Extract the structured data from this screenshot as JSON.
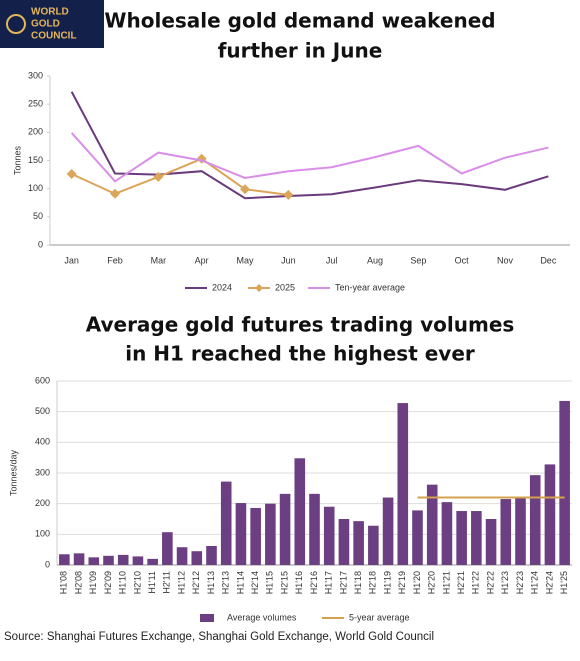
{
  "logo": {
    "lines": [
      "WORLD",
      "GOLD",
      "COUNCIL"
    ]
  },
  "chart_data": [
    {
      "type": "line",
      "title": [
        "Wholesale gold demand weakened",
        "further in June"
      ],
      "y_label": "Tonnes",
      "categories": [
        "Jan",
        "Feb",
        "Mar",
        "Apr",
        "May",
        "Jun",
        "Jul",
        "Aug",
        "Sep",
        "Oct",
        "Nov",
        "Dec"
      ],
      "ylim": [
        0,
        300
      ],
      "yticks": [
        0,
        50,
        100,
        150,
        200,
        250,
        300
      ],
      "grid": false,
      "series": [
        {
          "name": "2024",
          "color": "#6b3a7d",
          "values": [
            272,
            127,
            125,
            131,
            83,
            87,
            90,
            102,
            115,
            108,
            98,
            122
          ]
        },
        {
          "name": "2025",
          "color": "#dba55a",
          "marker": "diamond",
          "values": [
            126,
            91,
            121,
            153,
            99,
            89,
            null,
            null,
            null,
            null,
            null,
            null
          ]
        },
        {
          "name": "Ten-year average",
          "color": "#d98ee8",
          "values": [
            199,
            113,
            164,
            150,
            119,
            131,
            138,
            156,
            176,
            127,
            155,
            173
          ]
        }
      ]
    },
    {
      "type": "bar",
      "title": [
        "Average gold futures trading volumes",
        "in H1 reached the highest ever"
      ],
      "y_label": "Tonnes/day",
      "categories": [
        "H1'08",
        "H2'08",
        "H1'09",
        "H2'09",
        "H1'10",
        "H2'10",
        "H1'11",
        "H2'11",
        "H1'12",
        "H2'12",
        "H1'13",
        "H2'13",
        "H1'14",
        "H2'14",
        "H1'15",
        "H2'15",
        "H1'16",
        "H2'16",
        "H1'17",
        "H2'17",
        "H1'18",
        "H2'18",
        "H1'19",
        "H2'19",
        "H1'20",
        "H2'20",
        "H1'21",
        "H2'21",
        "H1'22",
        "H2'22",
        "H1'23",
        "H2'23",
        "H1'24",
        "H2'24",
        "H1'25"
      ],
      "ylim": [
        0,
        600
      ],
      "yticks": [
        0,
        100,
        200,
        300,
        400,
        500,
        600
      ],
      "grid": true,
      "series": [
        {
          "name": "Average volumes",
          "color": "#6b3f82",
          "type": "bar",
          "values": [
            35,
            38,
            25,
            30,
            33,
            28,
            20,
            107,
            58,
            45,
            62,
            272,
            202,
            186,
            200,
            232,
            348,
            232,
            190,
            150,
            143,
            128,
            220,
            528,
            178,
            262,
            205,
            176,
            176,
            150,
            215,
            222,
            293,
            328,
            535
          ]
        },
        {
          "name": "5-year average",
          "color": "#d4a24c",
          "type": "line",
          "values": [
            null,
            null,
            null,
            null,
            null,
            null,
            null,
            null,
            null,
            null,
            null,
            null,
            null,
            null,
            null,
            null,
            null,
            null,
            null,
            null,
            null,
            null,
            null,
            null,
            220,
            220,
            220,
            220,
            220,
            220,
            220,
            220,
            220,
            220,
            220
          ]
        }
      ]
    }
  ],
  "source": "Source: Shanghai Futures Exchange, Shanghai Gold Exchange, World Gold Council"
}
